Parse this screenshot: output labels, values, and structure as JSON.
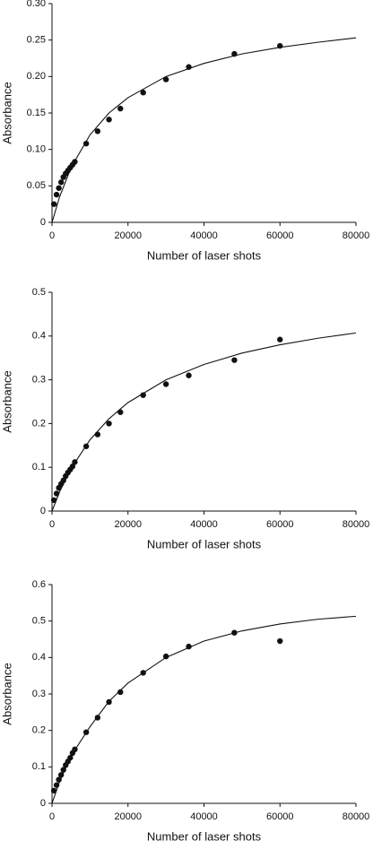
{
  "chart_data": [
    {
      "type": "scatter",
      "xlabel": "Number of laser shots",
      "ylabel": "Absorbance",
      "xlim": [
        0,
        80000
      ],
      "xticks": [
        0,
        20000,
        40000,
        60000,
        80000
      ],
      "ylim": [
        0,
        0.3
      ],
      "yticks": [
        0,
        0.05,
        {
          "value": 0.1,
          "label": "0.10"
        },
        0.15,
        {
          "value": 0.2,
          "label": "0.20"
        },
        0.25,
        {
          "value": 0.3,
          "label": "0.30"
        }
      ],
      "grid": false,
      "series": [
        {
          "mode": "markers",
          "color": "#111111",
          "x": [
            500,
            1200,
            1800,
            2400,
            3000,
            3600,
            4200,
            4800,
            5400,
            6000,
            9000,
            12000,
            15000,
            18000,
            24000,
            30000,
            36000,
            48000,
            60000
          ],
          "values": [
            0.025,
            0.038,
            0.047,
            0.055,
            0.062,
            0.067,
            0.071,
            0.075,
            0.079,
            0.083,
            0.108,
            0.125,
            0.141,
            0.156,
            0.178,
            0.196,
            0.213,
            0.231,
            0.242
          ]
        },
        {
          "mode": "line",
          "color": "#111111",
          "x": [
            0,
            2000,
            5000,
            10000,
            15000,
            20000,
            30000,
            40000,
            50000,
            60000,
            70000,
            80000
          ],
          "values": [
            0,
            0.035,
            0.075,
            0.12,
            0.15,
            0.171,
            0.2,
            0.218,
            0.231,
            0.24,
            0.247,
            0.253
          ]
        }
      ]
    },
    {
      "type": "scatter",
      "xlabel": "Number of laser shots",
      "ylabel": "Absorbance",
      "xlim": [
        0,
        80000
      ],
      "xticks": [
        0,
        20000,
        40000,
        60000,
        80000
      ],
      "ylim": [
        0,
        0.5
      ],
      "yticks": [
        0,
        0.1,
        0.2,
        0.3,
        0.4,
        0.5
      ],
      "grid": false,
      "series": [
        {
          "mode": "markers",
          "color": "#111111",
          "x": [
            500,
            1200,
            1800,
            2400,
            3000,
            3600,
            4200,
            4800,
            5400,
            6000,
            9000,
            12000,
            15000,
            18000,
            24000,
            30000,
            36000,
            48000,
            60000
          ],
          "values": [
            0.025,
            0.04,
            0.053,
            0.062,
            0.07,
            0.08,
            0.088,
            0.095,
            0.102,
            0.112,
            0.148,
            0.175,
            0.2,
            0.226,
            0.265,
            0.29,
            0.31,
            0.345,
            0.392
          ]
        },
        {
          "mode": "line",
          "color": "#111111",
          "x": [
            0,
            2000,
            5000,
            10000,
            15000,
            20000,
            30000,
            40000,
            50000,
            60000,
            70000,
            80000
          ],
          "values": [
            0,
            0.044,
            0.097,
            0.163,
            0.211,
            0.248,
            0.3,
            0.335,
            0.361,
            0.38,
            0.395,
            0.407
          ]
        }
      ]
    },
    {
      "type": "scatter",
      "xlabel": "Number of laser shots",
      "ylabel": "Absorbance",
      "xlim": [
        0,
        80000
      ],
      "xticks": [
        0,
        20000,
        40000,
        60000,
        80000
      ],
      "ylim": [
        0,
        0.6
      ],
      "yticks": [
        0,
        0.1,
        0.2,
        0.3,
        0.4,
        0.5,
        0.6
      ],
      "grid": false,
      "series": [
        {
          "mode": "markers",
          "color": "#111111",
          "x": [
            500,
            1200,
            1800,
            2400,
            3000,
            3600,
            4200,
            4800,
            5400,
            6000,
            9000,
            12000,
            15000,
            18000,
            24000,
            30000,
            36000,
            48000,
            60000
          ],
          "values": [
            0.035,
            0.05,
            0.065,
            0.078,
            0.092,
            0.105,
            0.115,
            0.125,
            0.138,
            0.148,
            0.195,
            0.235,
            0.278,
            0.305,
            0.358,
            0.403,
            0.43,
            0.468,
            0.445
          ]
        },
        {
          "mode": "line",
          "color": "#111111",
          "x": [
            0,
            2000,
            5000,
            10000,
            15000,
            20000,
            30000,
            40000,
            50000,
            60000,
            70000,
            80000
          ],
          "values": [
            0,
            0.06,
            0.13,
            0.21,
            0.28,
            0.33,
            0.4,
            0.445,
            0.473,
            0.492,
            0.505,
            0.513
          ]
        }
      ]
    }
  ]
}
